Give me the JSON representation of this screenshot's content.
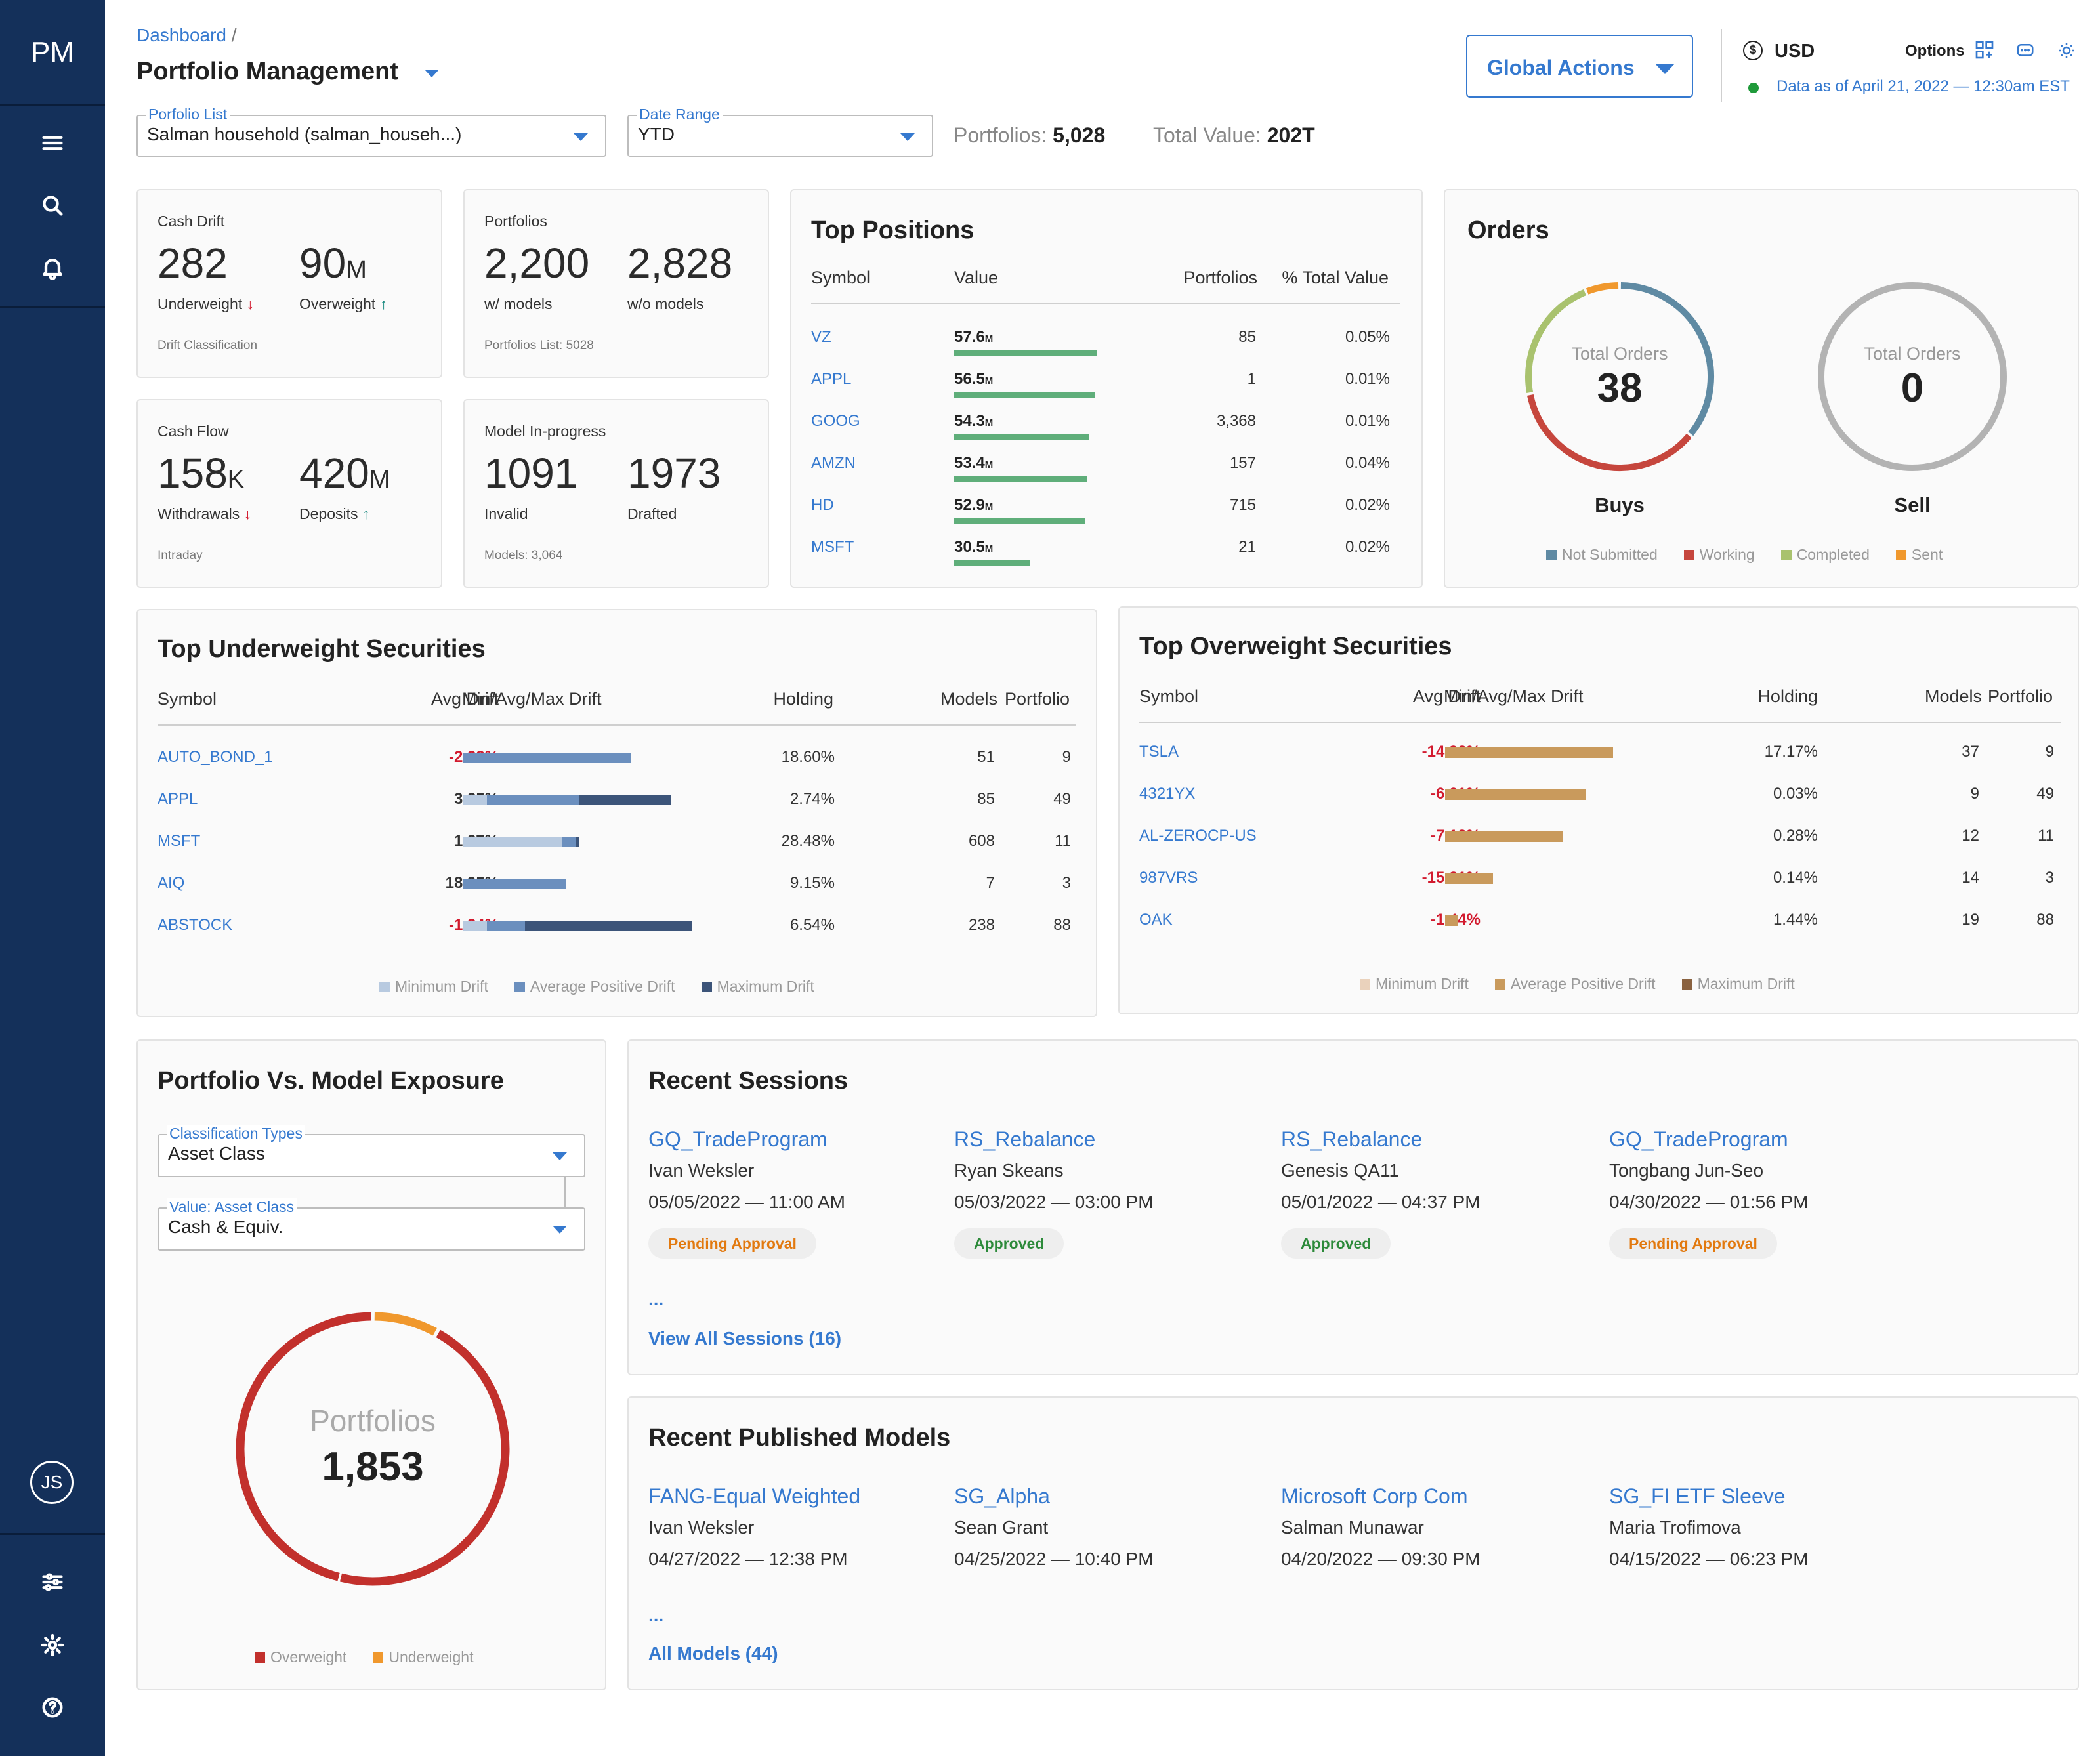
{
  "nav": {
    "logo": "PM",
    "avatar": "JS"
  },
  "header": {
    "breadcrumb": "Dashboard",
    "breadcrumb_sep": "/",
    "title": "Portfolio Management",
    "global_actions": "Global Actions",
    "currency": "USD",
    "options": "Options",
    "data_as_of": "Data as of April 21, 2022 — 12:30am EST"
  },
  "filters": {
    "portfolio_list_label": "Porfolio List",
    "portfolio_list_value": "Salman household (salman_househ...)",
    "date_range_label": "Date Range",
    "date_range_value": "YTD",
    "portfolios_label": "Portfolios:",
    "portfolios_value": "5,028",
    "total_value_label": "Total Value:",
    "total_value_value": "202T"
  },
  "kpis": {
    "cash_drift": {
      "title": "Cash Drift",
      "v1": "282",
      "l1": "Underweight",
      "v2": "90",
      "v2_unit": "M",
      "l2": "Overweight",
      "note": "Drift Classification"
    },
    "portfolios": {
      "title": "Portfolios",
      "v1": "2,200",
      "l1": "w/ models",
      "v2": "2,828",
      "l2": "w/o models",
      "note": "Portfolios List: 5028"
    },
    "cash_flow": {
      "title": "Cash Flow",
      "v1": "158",
      "v1_unit": "K",
      "l1": "Withdrawals",
      "v2": "420",
      "v2_unit": "M",
      "l2": "Deposits",
      "note": "Intraday"
    },
    "model_progress": {
      "title": "Model In-progress",
      "v1": "1091",
      "l1": "Invalid",
      "v2": "1973",
      "l2": "Drafted",
      "note": "Models: 3,064"
    }
  },
  "top_positions": {
    "title": "Top Positions",
    "headers": [
      "Symbol",
      "Value",
      "Portfolios",
      "% Total Value"
    ],
    "rows": [
      {
        "symbol": "VZ",
        "value": "57.6",
        "unit": "M",
        "portfolios": "85",
        "pct": "0.05%",
        "bar": 57.6
      },
      {
        "symbol": "APPL",
        "value": "56.5",
        "unit": "M",
        "portfolios": "1",
        "pct": "0.01%",
        "bar": 56.5
      },
      {
        "symbol": "GOOG",
        "value": "54.3",
        "unit": "M",
        "portfolios": "3,368",
        "pct": "0.01%",
        "bar": 54.3
      },
      {
        "symbol": "AMZN",
        "value": "53.4",
        "unit": "M",
        "portfolios": "157",
        "pct": "0.04%",
        "bar": 53.4
      },
      {
        "symbol": "HD",
        "value": "52.9",
        "unit": "M",
        "portfolios": "715",
        "pct": "0.02%",
        "bar": 52.9
      },
      {
        "symbol": "MSFT",
        "value": "30.5",
        "unit": "M",
        "portfolios": "21",
        "pct": "0.02%",
        "bar": 30.5
      }
    ]
  },
  "orders": {
    "title": "Orders",
    "center_label": "Total Orders",
    "buys": {
      "total": "38",
      "label": "Buys",
      "segments": [
        {
          "name": "Not Submitted",
          "value": 0.36
        },
        {
          "name": "Working",
          "value": 0.36
        },
        {
          "name": "Completed",
          "value": 0.22
        },
        {
          "name": "Sent",
          "value": 0.06
        }
      ]
    },
    "sell": {
      "total": "0",
      "label": "Sell"
    },
    "legend": [
      "Not Submitted",
      "Working",
      "Completed",
      "Sent"
    ],
    "colors": [
      "#5f8aa3",
      "#c6463d",
      "#a9c26e",
      "#f0982d"
    ]
  },
  "underweight": {
    "title": "Top Underweight Securities",
    "headers": [
      "Symbol",
      "Avg Drift",
      "Min/Avg/Max Drift",
      "Holding",
      "Models",
      "Portfolio"
    ],
    "rows": [
      {
        "symbol": "AUTO_BOND_1",
        "avg": "-2.38%",
        "neg": true,
        "holding": "18.60%",
        "models": "51",
        "portfolio": "9",
        "bars": [
          0,
          0,
          0.49
        ]
      },
      {
        "symbol": "APPL",
        "avg": "3.25%",
        "neg": false,
        "holding": "2.74%",
        "models": "85",
        "portfolio": "49",
        "bars": [
          0.07,
          0.34,
          0.61
        ]
      },
      {
        "symbol": "MSFT",
        "avg": "1.27%",
        "neg": false,
        "holding": "28.48%",
        "models": "608",
        "portfolio": "11",
        "bars": [
          0.29,
          0.33,
          0.34
        ]
      },
      {
        "symbol": "AIQ",
        "avg": "18.95%",
        "neg": false,
        "holding": "9.15%",
        "models": "7",
        "portfolio": "3",
        "bars": [
          0,
          0,
          0.3
        ]
      },
      {
        "symbol": "ABSTOCK",
        "avg": "-1.34%",
        "neg": true,
        "holding": "6.54%",
        "models": "238",
        "portfolio": "88",
        "bars": [
          0.07,
          0.18,
          0.67
        ]
      }
    ],
    "legend": [
      "Minimum Drift",
      "Average Positive Drift",
      "Maximum Drift"
    ],
    "colors": [
      "#b8cae0",
      "#6b8fbe",
      "#3c5479"
    ]
  },
  "overweight": {
    "title": "Top Overweight Securities",
    "headers": [
      "Symbol",
      "Avg Drift",
      "Min/Avg/Max Drift",
      "Holding",
      "Models",
      "Portfolio"
    ],
    "rows": [
      {
        "symbol": "TSLA",
        "avg": "-14.92%",
        "holding": "17.17%",
        "models": "37",
        "portfolio": "9",
        "bar": 0.67
      },
      {
        "symbol": "4321YX",
        "avg": "-6.01%",
        "holding": "0.03%",
        "models": "9",
        "portfolio": "49",
        "bar": 0.56
      },
      {
        "symbol": "AL-ZEROCP-US",
        "avg": "-7.12%",
        "holding": "0.28%",
        "models": "12",
        "portfolio": "11",
        "bar": 0.47
      },
      {
        "symbol": "987VRS",
        "avg": "-15.21%",
        "holding": "0.14%",
        "models": "14",
        "portfolio": "3",
        "bar": 0.19
      },
      {
        "symbol": "OAK",
        "avg": "-1.44%",
        "holding": "1.44%",
        "models": "19",
        "portfolio": "88",
        "bar": 0.05
      }
    ],
    "legend": [
      "Minimum Drift",
      "Average Positive Drift",
      "Maximum Drift"
    ],
    "colors": [
      "#ead2bc",
      "#c99a5c",
      "#8a6240"
    ]
  },
  "exposure": {
    "title": "Portfolio Vs. Model Exposure",
    "class_label": "Classification Types",
    "class_value": "Asset Class",
    "value_label": "Value: Asset Class",
    "value_value": "Cash & Equiv.",
    "center_label": "Portfolios",
    "center_value": "1,853",
    "segments": [
      {
        "name": "Overweight",
        "value": 0.92
      },
      {
        "name": "Underweight",
        "value": 0.08
      }
    ],
    "legend": [
      "Overweight",
      "Underweight"
    ],
    "colors": [
      "#c2302c",
      "#f0982d"
    ]
  },
  "sessions": {
    "title": "Recent Sessions",
    "items": [
      {
        "name": "GQ_TradeProgram",
        "user": "Ivan Weksler",
        "when": "05/05/2022 — 11:00 AM",
        "status": "Pending Approval",
        "status_color": "#e2790f"
      },
      {
        "name": "RS_Rebalance",
        "user": "Ryan Skeans",
        "when": "05/03/2022 — 03:00 PM",
        "status": "Approved",
        "status_color": "#2c8a3a"
      },
      {
        "name": "RS_Rebalance",
        "user": "Genesis QA11",
        "when": "05/01/2022 — 04:37 PM",
        "status": "Approved",
        "status_color": "#2c8a3a"
      },
      {
        "name": "GQ_TradeProgram",
        "user": "Tongbang Jun-Seo",
        "when": "04/30/2022 — 01:56 PM",
        "status": "Pending Approval",
        "status_color": "#e2790f"
      }
    ],
    "ellipsis": "...",
    "view_all": "View All Sessions (16)"
  },
  "models": {
    "title": "Recent Published Models",
    "items": [
      {
        "name": "FANG-Equal Weighted",
        "user": "Ivan Weksler",
        "when": "04/27/2022 — 12:38 PM"
      },
      {
        "name": "SG_Alpha",
        "user": "Sean Grant",
        "when": "04/25/2022  — 10:40 PM"
      },
      {
        "name": "Microsoft Corp Com",
        "user": "Salman Munawar",
        "when": "04/20/2022 — 09:30 PM"
      },
      {
        "name": "SG_FI ETF Sleeve",
        "user": "Maria Trofimova",
        "when": "04/15/2022 — 06:23 PM"
      }
    ],
    "ellipsis": "...",
    "view_all": "All Models (44)"
  }
}
